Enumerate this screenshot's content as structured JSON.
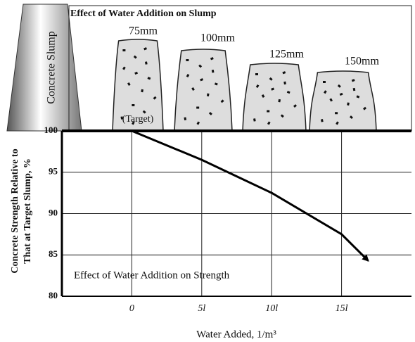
{
  "chart_data": {
    "type": "line",
    "title": "Effect of Water Addition on Slump",
    "side_label": "Concrete Slump",
    "cones": [
      {
        "label": "75mm",
        "note": "(Target)"
      },
      {
        "label": "100mm"
      },
      {
        "label": "125mm"
      },
      {
        "label": "150mm"
      }
    ],
    "annotation": "Effect of Water Addition on Strength",
    "ylabel": [
      "Concrete Strength Relative to",
      "That at Target Slump, %"
    ],
    "xlabel": "Water Added, 1/m³",
    "x": [
      0,
      5,
      10,
      15,
      16.9
    ],
    "values": [
      100,
      96.5,
      92.5,
      87.5,
      84.3
    ],
    "color": "#000000",
    "xlim": [
      -5,
      20
    ],
    "xticks": [
      0,
      {
        "value": 5,
        "label": "5l"
      },
      {
        "value": 10,
        "label": "10l"
      },
      {
        "value": 15,
        "label": "15l"
      }
    ],
    "ylim": [
      80,
      100
    ],
    "yticks": [
      80,
      85,
      90,
      95,
      100
    ],
    "grid": true
  }
}
